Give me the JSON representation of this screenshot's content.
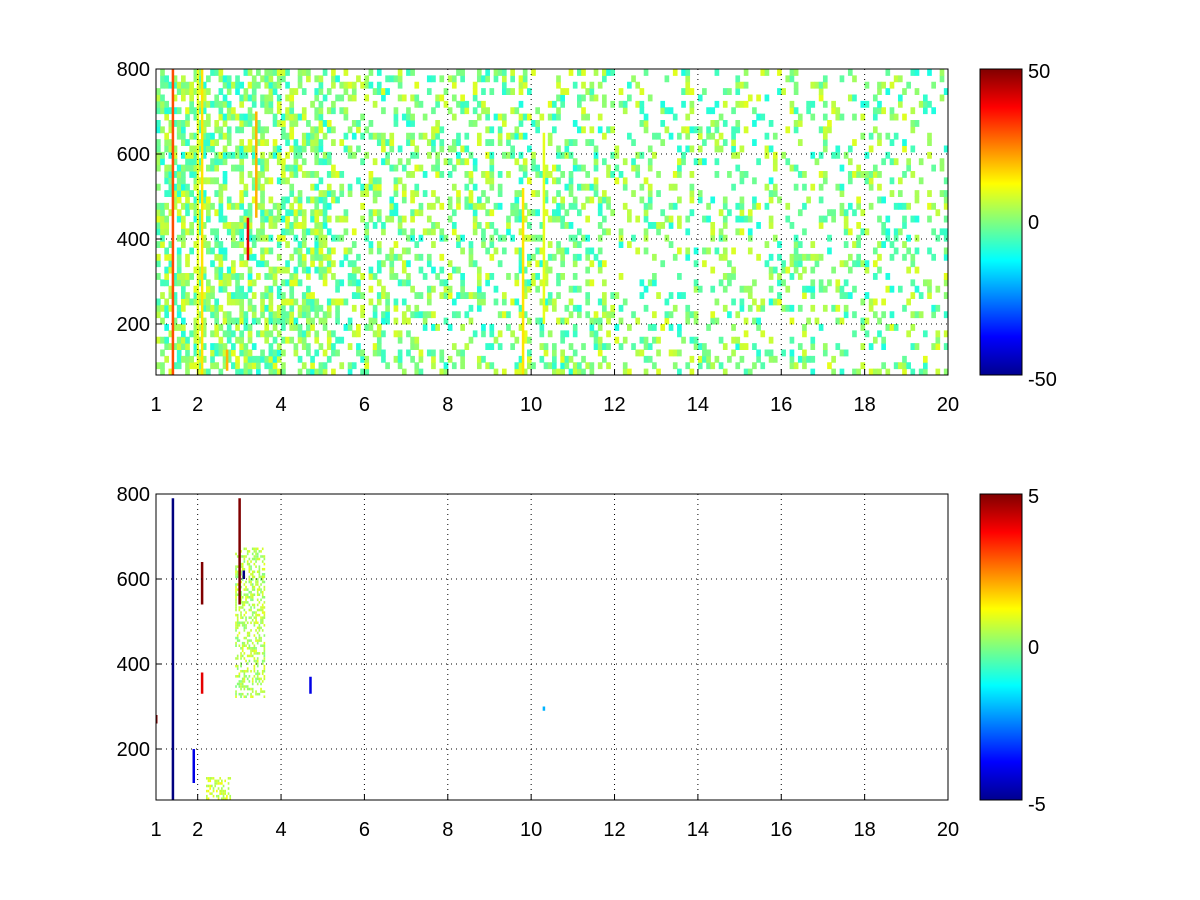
{
  "chart_data": [
    {
      "type": "heatmap",
      "title": "",
      "xlabel": "",
      "ylabel": "",
      "xlim": [
        1,
        20
      ],
      "ylim": [
        80,
        800
      ],
      "x_ticks": [
        "1",
        "2",
        "4",
        "6",
        "8",
        "10",
        "12",
        "14",
        "16",
        "18",
        "20"
      ],
      "y_ticks": [
        "200",
        "400",
        "600",
        "800"
      ],
      "grid": true,
      "colormap": "jet",
      "colorbar": {
        "min": -50,
        "max": 50,
        "ticks": [
          "50",
          "0",
          "-50"
        ]
      },
      "features": [
        {
          "x": 1.4,
          "y_from": 80,
          "y_to": 800,
          "value": 30
        },
        {
          "x": 2.1,
          "y_from": 80,
          "y_to": 800,
          "value": 15
        },
        {
          "x": 2.0,
          "y_from": 80,
          "y_to": 800,
          "value": 10
        },
        {
          "x": 3.2,
          "y_from": 350,
          "y_to": 450,
          "value": 40
        },
        {
          "x": 3.4,
          "y_from": 450,
          "y_to": 700,
          "value": 20
        },
        {
          "x": 2.7,
          "y_from": 90,
          "y_to": 140,
          "value": 20
        },
        {
          "x": 9.8,
          "y_from": 80,
          "y_to": 520,
          "value": 15
        },
        {
          "x": 10.3,
          "y_from": 200,
          "y_to": 650,
          "value": 10
        }
      ],
      "noise": {
        "x_from": 1.0,
        "x_to": 20.0,
        "density": 0.3,
        "value_range": [
          -10,
          10
        ]
      }
    },
    {
      "type": "heatmap",
      "title": "",
      "xlabel": "",
      "ylabel": "",
      "xlim": [
        1,
        20
      ],
      "ylim": [
        80,
        800
      ],
      "x_ticks": [
        "1",
        "2",
        "4",
        "6",
        "8",
        "10",
        "12",
        "14",
        "16",
        "18",
        "20"
      ],
      "y_ticks": [
        "200",
        "400",
        "600",
        "800"
      ],
      "grid": true,
      "colormap": "jet",
      "colorbar": {
        "min": -5,
        "max": 5,
        "ticks": [
          "5",
          "0",
          "-5"
        ]
      },
      "features": [
        {
          "x": 1.4,
          "y_from": 80,
          "y_to": 790,
          "value": -5
        },
        {
          "x": 1.9,
          "y_from": 120,
          "y_to": 200,
          "value": -4
        },
        {
          "x": 2.1,
          "y_from": 540,
          "y_to": 640,
          "value": 5
        },
        {
          "x": 2.1,
          "y_from": 330,
          "y_to": 380,
          "value": 4
        },
        {
          "x": 3.0,
          "y_from": 540,
          "y_to": 790,
          "value": 5
        },
        {
          "x": 3.1,
          "y_from": 600,
          "y_to": 620,
          "value": -5
        },
        {
          "x": 4.7,
          "y_from": 330,
          "y_to": 370,
          "value": -4
        },
        {
          "x": 10.3,
          "y_from": 290,
          "y_to": 300,
          "value": -2
        },
        {
          "x": 1.0,
          "y_from": 260,
          "y_to": 280,
          "value": 5
        }
      ],
      "blobs": [
        {
          "x_from": 2.9,
          "x_to": 3.6,
          "y_from": 320,
          "y_to": 670,
          "value": 0.5
        },
        {
          "x_from": 2.2,
          "x_to": 2.8,
          "y_from": 80,
          "y_to": 130,
          "value": 0.8
        }
      ]
    }
  ]
}
